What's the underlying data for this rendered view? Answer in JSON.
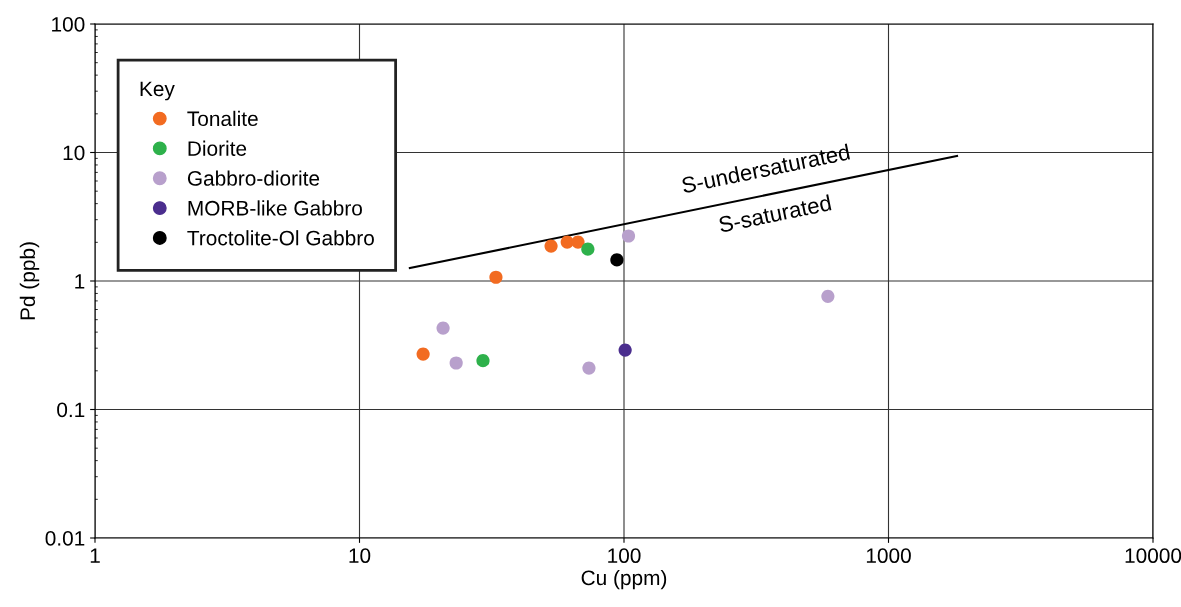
{
  "chart_data": {
    "type": "scatter",
    "xlabel": "Cu (ppm)",
    "ylabel": "Pd (ppb)",
    "log": "xy",
    "legend_title": "Key",
    "legend": "top left",
    "grid": true,
    "marker": "circle",
    "xlim": [
      1,
      10000
    ],
    "xticks": [
      1,
      10,
      100,
      1000,
      10000
    ],
    "ylim": [
      0.01,
      100
    ],
    "yticks": [
      0.01,
      0.1,
      1,
      10,
      100
    ],
    "series": [
      {
        "name": "Tonalite",
        "color": "#f26b21",
        "x": [
          17.4,
          32.8,
          53,
          61,
          67
        ],
        "values": [
          0.27,
          1.07,
          1.87,
          2.01,
          2.01
        ]
      },
      {
        "name": "Diorite",
        "color": "#2eb14b",
        "x": [
          29.3,
          73
        ],
        "values": [
          0.24,
          1.77
        ]
      },
      {
        "name": "Gabbro-diorite",
        "color": "#b8a0cc",
        "x": [
          20.7,
          23.2,
          73.7,
          104,
          590
        ],
        "values": [
          0.43,
          0.23,
          0.21,
          2.24,
          0.76
        ]
      },
      {
        "name": "MORB-like Gabbro",
        "color": "#4b2e8e",
        "x": [
          101
        ],
        "values": [
          0.29
        ]
      },
      {
        "name": "Troctolite-Ol Gabbro",
        "color": "#000000",
        "x": [
          94
        ],
        "values": [
          1.46
        ]
      },
      {
        "type": "line",
        "marker": "none",
        "color": "#000000",
        "x": [
          15.5,
          1816
        ],
        "values": [
          1.26,
          9.4
        ]
      }
    ],
    "annotations": [
      "S-undersaturated",
      "S-saturated"
    ]
  }
}
